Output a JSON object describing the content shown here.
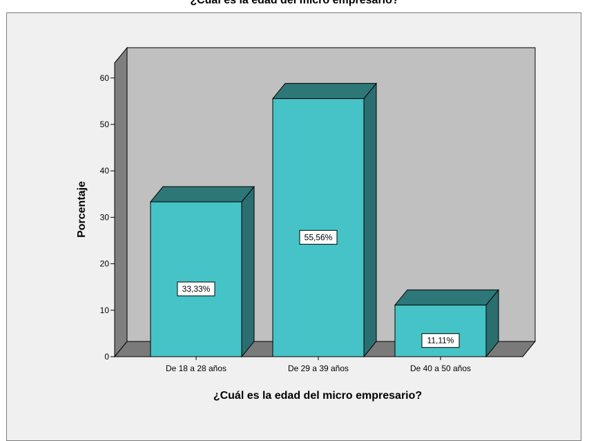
{
  "chart_data": {
    "type": "bar",
    "title": "¿Cuál es la edad del micro empresario?",
    "xlabel": "¿Cuál es la edad del micro empresario?",
    "ylabel": "Porcentaje",
    "categories": [
      "De 18 a 28 años",
      "De 29 a 39 años",
      "De 40 a 50 años"
    ],
    "values": [
      33.33,
      55.56,
      11.11
    ],
    "data_labels": [
      "33,33%",
      "55,56%",
      "11,11%"
    ],
    "ylim": [
      0,
      60
    ],
    "yticks": [
      0,
      10,
      20,
      30,
      40,
      50,
      60
    ],
    "grid": false,
    "legend": "none",
    "colors": {
      "bar_front": "#46c3c6",
      "bar_top": "#2d7778",
      "bar_side": "#2b6e70",
      "back_wall": "#c0c0c0",
      "side_wall": "#7f7f7f",
      "floor": "#7a7a7a",
      "chart_background": "#f0f0f0"
    }
  }
}
